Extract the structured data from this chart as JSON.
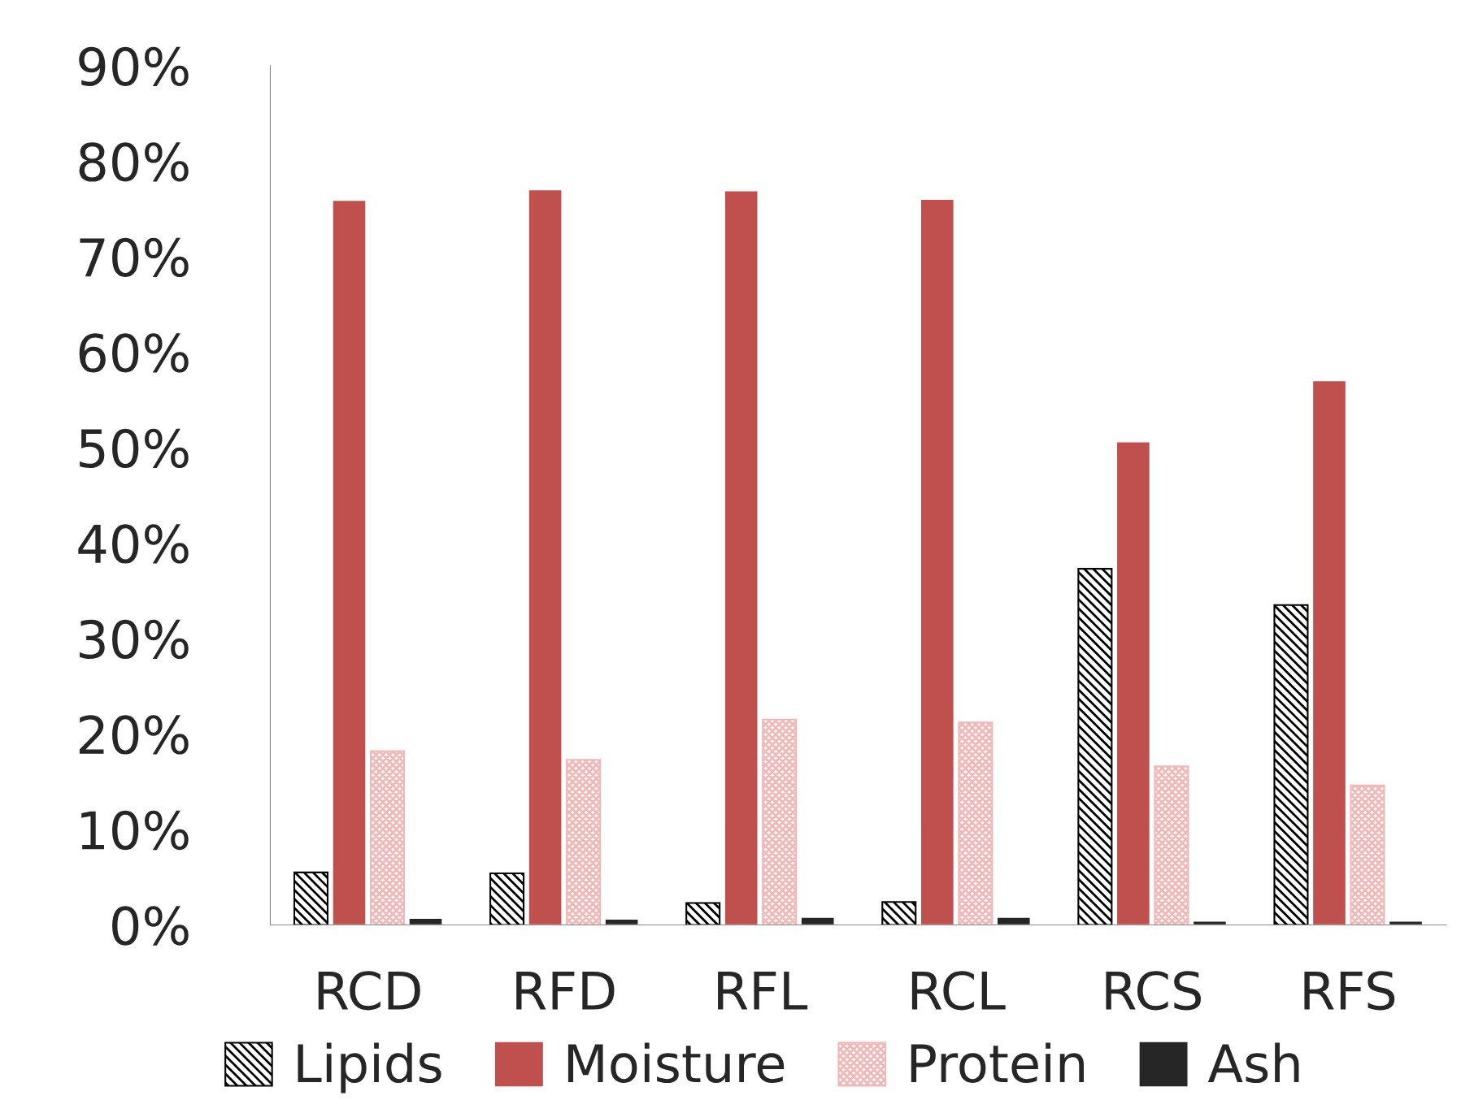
{
  "chart_data": {
    "type": "bar",
    "categories": [
      "RCD",
      "RFD",
      "RFL",
      "RCL",
      "RCS",
      "RFS"
    ],
    "series": [
      {
        "name": "Lipids",
        "color": "#000000",
        "values": [
          5.5,
          5.4,
          2.3,
          2.4,
          37.3,
          33.5
        ]
      },
      {
        "name": "Moisture",
        "color": "#c0504d",
        "values": [
          75.9,
          77.0,
          76.9,
          76.0,
          50.6,
          57.0
        ]
      },
      {
        "name": "Protein",
        "color": "#f2b8b7",
        "values": [
          18.2,
          17.3,
          21.5,
          21.2,
          16.6,
          14.6
        ]
      },
      {
        "name": "Ash",
        "color": "#262626",
        "values": [
          0.7,
          0.6,
          0.8,
          0.8,
          0.4,
          0.4
        ]
      }
    ],
    "ylim": [
      0,
      90
    ],
    "yticks": [
      {
        "value": 0,
        "label": "0%"
      },
      {
        "value": 10,
        "label": "10%"
      },
      {
        "value": 20,
        "label": "20%"
      },
      {
        "value": 30,
        "label": "30%"
      },
      {
        "value": 40,
        "label": "40%"
      },
      {
        "value": 50,
        "label": "50%"
      },
      {
        "value": 60,
        "label": "60%"
      },
      {
        "value": 70,
        "label": "70%"
      },
      {
        "value": 80,
        "label": "80%"
      },
      {
        "value": 90,
        "label": "90%"
      }
    ],
    "grid": false,
    "legend": "bottom"
  }
}
